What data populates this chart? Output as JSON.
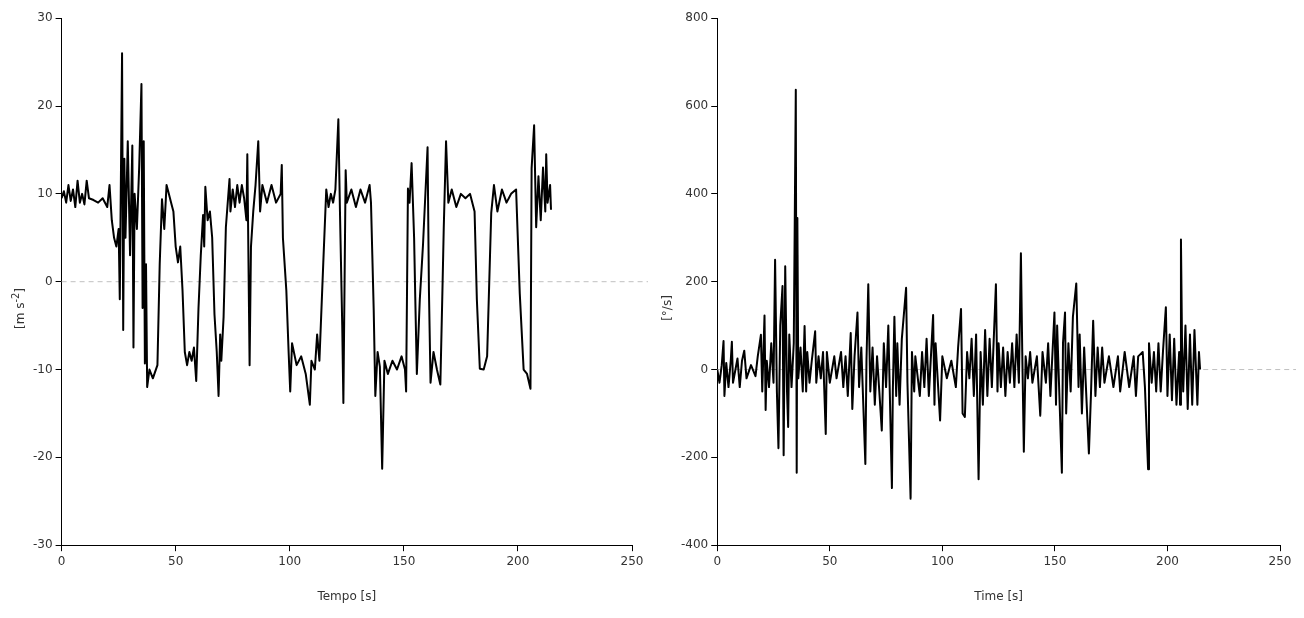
{
  "chart_data": [
    {
      "type": "line",
      "xlabel": "Tempo [s]",
      "ylabel": "[m s$^{-2}$]",
      "xlim": [
        0,
        250
      ],
      "ylim": [
        -30,
        30
      ],
      "xticks": [
        0,
        50,
        100,
        150,
        200,
        250
      ],
      "yticks": [
        -30,
        -20,
        -10,
        0,
        10,
        20,
        30
      ],
      "grid": false,
      "legend": false,
      "ref_lines": [
        {
          "axis": "y",
          "value": 0,
          "color": "#c0c0c0",
          "line_style": "dashed"
        }
      ],
      "series": [
        {
          "color": "#000000",
          "x": [
            0,
            1,
            2,
            3,
            4,
            5,
            6,
            7,
            8,
            9,
            10,
            11,
            12,
            14,
            16,
            18,
            20,
            21,
            22,
            23,
            24,
            25,
            25.5,
            26,
            26.5,
            27,
            27.5,
            28,
            29,
            30,
            31,
            31.5,
            32,
            33,
            34,
            35,
            35.5,
            36,
            36.5,
            37,
            37.5,
            38.5,
            40,
            42,
            43,
            44,
            45,
            46,
            47,
            48,
            49,
            50,
            51,
            52,
            53,
            54,
            55,
            56,
            57,
            58,
            59,
            60,
            61,
            62,
            62.5,
            63,
            64,
            65,
            66,
            67,
            68,
            68.8,
            69.5,
            70,
            71,
            72,
            73.6,
            74,
            75,
            76,
            77,
            78,
            79,
            80,
            81,
            81.4,
            82,
            82.4,
            83,
            84,
            85,
            86.2,
            87,
            88,
            90,
            92,
            94,
            96,
            96.5,
            97,
            98.5,
            99.5,
            100.2,
            101,
            103,
            105,
            107,
            108.8,
            109.5,
            111,
            112,
            113,
            114.7,
            116,
            117,
            118,
            119,
            120,
            121.3,
            122,
            123,
            123.5,
            124.5,
            125,
            127,
            129,
            131,
            133,
            135,
            135.6,
            136.8,
            137.5,
            138.5,
            139.5,
            140.5,
            141.5,
            143,
            145,
            147,
            149,
            150.5,
            151,
            151.8,
            152.5,
            153.4,
            154.5,
            155,
            155.7,
            157,
            158.4,
            160.4,
            161,
            161.7,
            163,
            164.5,
            166,
            167,
            167.5,
            168.5,
            169.5,
            171,
            173,
            175,
            177,
            179,
            181,
            182,
            183.3,
            185,
            186.5,
            188.3,
            189.5,
            191,
            193,
            195,
            197,
            199.2,
            200.8,
            202.5,
            204,
            205.5,
            206,
            207.1,
            208,
            209,
            210,
            211,
            212,
            212.4,
            213,
            214.1,
            214.5
          ],
          "values": [
            9.5,
            10.3,
            9,
            11,
            9.2,
            10.5,
            8.5,
            11.5,
            9,
            10,
            8.8,
            11.5,
            9.5,
            9.3,
            9,
            9.5,
            8.5,
            11,
            7,
            5,
            4,
            6,
            -2,
            12,
            26,
            -5.5,
            14,
            5,
            16,
            3,
            15.5,
            -7.5,
            10,
            6,
            13,
            22.5,
            -3,
            16,
            -9.3,
            2,
            -12,
            -10,
            -11,
            -9.5,
            2,
            9.4,
            6,
            11,
            10,
            9,
            8,
            4,
            2.2,
            4,
            -1,
            -8,
            -9.5,
            -8,
            -9,
            -7.5,
            -11.3,
            -3,
            3,
            7.6,
            4,
            10.8,
            7,
            8,
            5,
            -3.7,
            -8,
            -13,
            -6,
            -9,
            -4,
            6.2,
            11.7,
            8,
            10.5,
            8.5,
            11,
            9,
            11,
            9.5,
            7,
            14.5,
            0,
            -9.5,
            4,
            8,
            11,
            16,
            8,
            11,
            9,
            11,
            9,
            10,
            13.3,
            5,
            -1,
            -8,
            -12.5,
            -7,
            -9.5,
            -8.5,
            -10.5,
            -14,
            -9,
            -10,
            -6,
            -9,
            2.2,
            10.5,
            8.5,
            10,
            9,
            10.5,
            18.5,
            8,
            -5,
            -13.8,
            12.7,
            9,
            10.5,
            8.5,
            10.5,
            9,
            11,
            9,
            -3.3,
            -13,
            -8,
            -9.7,
            -21.3,
            -9,
            -10.5,
            -9,
            -10,
            -8.5,
            -10,
            -12.5,
            10.6,
            9,
            13.5,
            5,
            -1.7,
            -10.5,
            -2,
            4.2,
            15.3,
            -1,
            -11.5,
            -8,
            -10,
            -11.7,
            0,
            6.2,
            16,
            9,
            10.5,
            8.5,
            10,
            9.5,
            10,
            8,
            -2,
            -9.9,
            -10,
            -8.5,
            7.8,
            11,
            8,
            10.5,
            9,
            10,
            10.5,
            -1.3,
            -10,
            -10.5,
            -12.2,
            12.9,
            17.8,
            6.2,
            12,
            7,
            13,
            8,
            14.5,
            9,
            11,
            8.2
          ]
        }
      ]
    },
    {
      "type": "line",
      "xlabel": "Time [s]",
      "ylabel": "[°/s]",
      "xlim": [
        0,
        250
      ],
      "ylim": [
        -400,
        800
      ],
      "xticks": [
        0,
        50,
        100,
        150,
        200,
        250
      ],
      "yticks": [
        -400,
        -200,
        0,
        200,
        400,
        600,
        800
      ],
      "grid": false,
      "legend": false,
      "ref_lines": [
        {
          "axis": "y",
          "value": 0,
          "color": "#c0c0c0",
          "line_style": "dashed"
        }
      ],
      "series": [
        {
          "color": "#000000",
          "x": [
            0,
            1,
            2,
            2.8,
            3.2,
            4,
            5,
            6,
            6.5,
            7,
            9,
            10,
            11,
            12,
            13,
            15,
            17,
            18,
            19.4,
            20,
            21,
            21.5,
            22,
            23,
            24,
            25,
            25.7,
            26.5,
            27.2,
            28,
            29,
            29.5,
            30.2,
            31,
            31.5,
            32,
            33,
            34,
            34.9,
            35.3,
            35.6,
            36,
            37,
            38,
            38.8,
            39.5,
            40,
            41,
            42,
            43.5,
            44,
            45,
            46,
            47,
            48.2,
            48.7,
            50,
            52,
            53,
            55,
            56,
            57,
            58,
            59.3,
            60,
            61,
            62.3,
            63,
            64,
            65.8,
            66.3,
            67.1,
            68,
            69,
            70,
            71,
            72,
            73.1,
            74,
            75,
            76,
            77.6,
            78,
            78.7,
            79.5,
            80,
            81,
            82,
            83.9,
            84.5,
            85.9,
            86.5,
            87.5,
            88,
            90,
            91,
            92,
            93,
            94,
            95.9,
            96.5,
            97,
            99,
            100,
            102,
            104,
            106,
            107,
            108.3,
            109,
            110,
            111,
            112,
            113,
            114,
            115,
            116.1,
            117,
            118,
            119,
            120,
            121,
            122,
            123.8,
            124.5,
            125,
            126,
            127,
            128,
            129,
            130,
            131,
            132,
            133,
            134,
            134.9,
            135.5,
            136.2,
            137,
            138,
            139,
            140,
            142,
            143.5,
            144.5,
            146,
            147,
            148,
            149.8,
            150.5,
            151,
            153.1,
            153.6,
            154.5,
            155,
            156,
            157,
            158,
            159.5,
            160.5,
            161,
            162,
            163,
            165.1,
            166,
            167,
            168,
            169,
            170,
            171,
            172,
            174,
            176,
            178,
            179,
            181,
            183,
            185,
            186,
            187,
            189,
            190,
            191.4,
            191.8,
            193,
            194,
            195,
            196,
            197,
            198,
            199.3,
            200,
            201,
            202,
            203,
            204,
            205.2,
            205.6,
            206,
            206.5,
            207,
            208,
            209,
            210,
            211,
            212,
            213.3,
            214,
            214.5
          ],
          "values": [
            0,
            -30,
            10,
            65,
            -60,
            15,
            -40,
            20,
            63,
            -30,
            25,
            -40,
            20,
            43,
            -20,
            10,
            -15,
            30,
            79,
            -50,
            123,
            -92,
            20,
            -40,
            60,
            -30,
            250,
            -50,
            -179,
            100,
            190,
            -195,
            235,
            -50,
            -131,
            80,
            -40,
            60,
            637,
            -235,
            345,
            -20,
            50,
            -50,
            99,
            -50,
            40,
            -30,
            20,
            87,
            -30,
            30,
            -20,
            40,
            -147,
            40,
            -30,
            30,
            -20,
            40,
            -40,
            30,
            -60,
            83,
            -90,
            30,
            130,
            -40,
            50,
            -215,
            20,
            194,
            -50,
            50,
            -80,
            30,
            -50,
            -139,
            60,
            -40,
            100,
            -270,
            -50,
            120,
            -60,
            60,
            -80,
            70,
            186,
            -30,
            -294,
            40,
            -50,
            30,
            -60,
            40,
            -40,
            70,
            -60,
            124,
            -80,
            60,
            -116,
            30,
            -20,
            20,
            -40,
            50,
            138,
            -100,
            -108,
            40,
            -20,
            70,
            -60,
            80,
            -250,
            40,
            -80,
            90,
            -60,
            70,
            -40,
            194,
            -50,
            60,
            -40,
            50,
            -60,
            40,
            -30,
            60,
            -40,
            80,
            -30,
            265,
            40,
            -187,
            30,
            -20,
            40,
            -30,
            30,
            -105,
            40,
            -30,
            60,
            -60,
            130,
            -80,
            100,
            -235,
            60,
            130,
            -100,
            60,
            -50,
            120,
            196,
            -40,
            80,
            -100,
            50,
            -191,
            -60,
            111,
            -60,
            50,
            -40,
            50,
            -30,
            30,
            -40,
            30,
            -50,
            40,
            -40,
            30,
            -60,
            30,
            40,
            -40,
            -227,
            60,
            -30,
            40,
            -50,
            60,
            -50,
            40,
            142,
            -60,
            80,
            -70,
            70,
            -80,
            40,
            -80,
            296,
            50,
            -50,
            100,
            -90,
            80,
            -80,
            90,
            -80,
            40,
            0
          ]
        }
      ]
    }
  ]
}
